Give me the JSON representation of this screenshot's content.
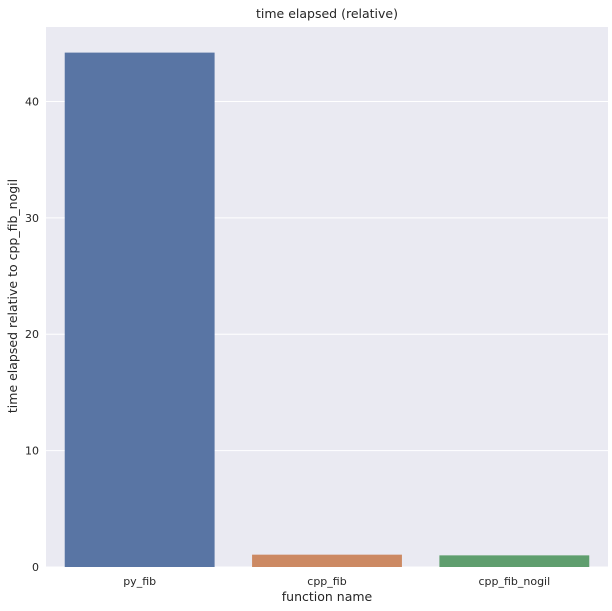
{
  "chart_data": {
    "type": "bar",
    "title": "time elapsed (relative)",
    "xlabel": "function name",
    "ylabel": "time elapsed relative to cpp_fib_nogil",
    "categories": [
      "py_fib",
      "cpp_fib",
      "cpp_fib_nogil"
    ],
    "values": [
      44.2,
      1.06,
      1.0
    ],
    "colors": [
      "#5975a4",
      "#cc8963",
      "#5f9e6e"
    ],
    "ylim": [
      0,
      46.4
    ],
    "yticks": [
      0,
      10,
      20,
      30,
      40
    ],
    "grid": true,
    "background": "#eaeaf2",
    "grid_color": "#ffffff"
  }
}
